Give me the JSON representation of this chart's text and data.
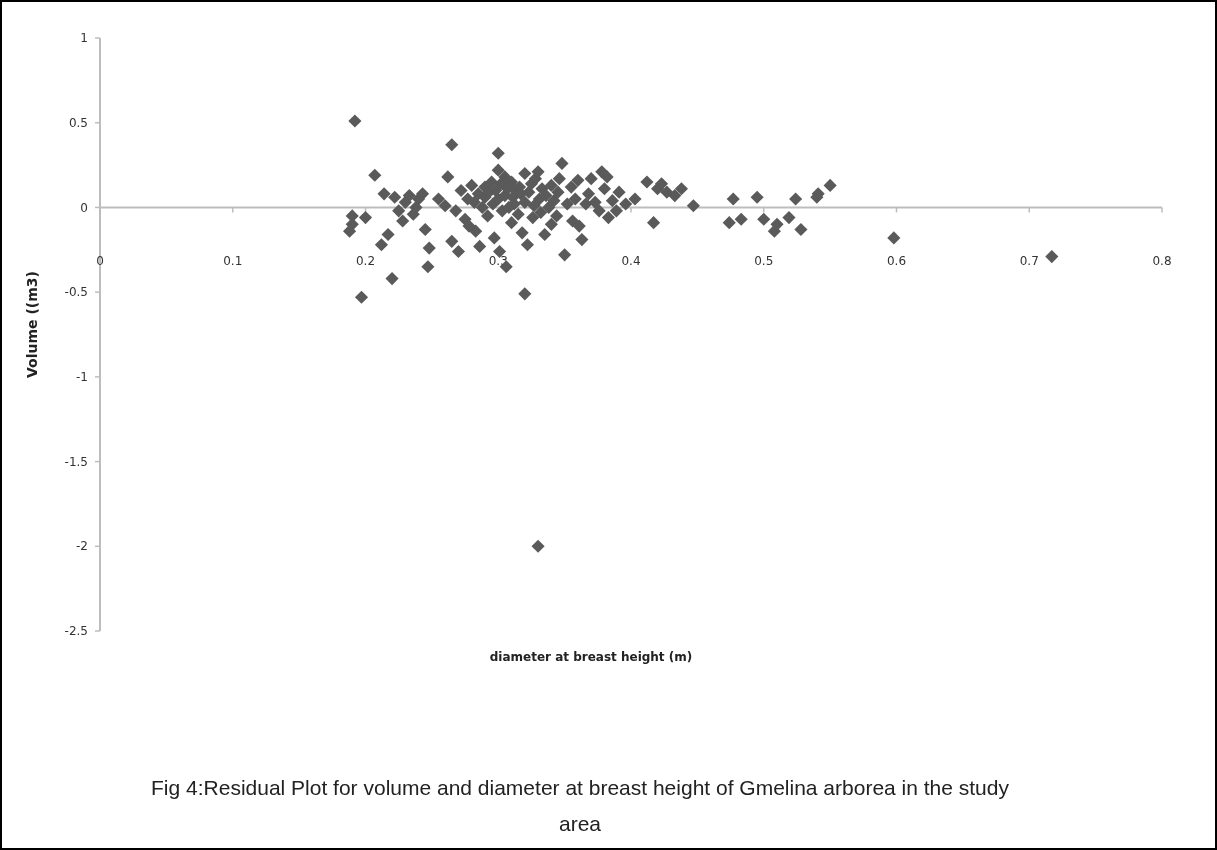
{
  "chart_data": {
    "type": "scatter",
    "xlabel": "diameter at breast height (m)",
    "ylabel": "Volume ((m3)",
    "annotations": [
      "Fig 4:Residual Plot for volume and diameter at breast height of Gmelina arborea in the study area"
    ],
    "xlim": [
      0,
      0.8
    ],
    "xticks": [
      0,
      0.1,
      0.2,
      0.3,
      0.4,
      0.5,
      0.6,
      0.7,
      0.8
    ],
    "ylim": [
      -2.5,
      1
    ],
    "yticks": [
      -2.5,
      -2,
      -1.5,
      -1,
      -0.5,
      0,
      0.5,
      1
    ],
    "marker": "diamond",
    "series": [
      {
        "color": "#5a5a5a",
        "x": [
          0.192,
          0.19,
          0.19,
          0.188,
          0.197,
          0.2,
          0.207,
          0.214,
          0.217,
          0.22,
          0.212,
          0.222,
          0.225,
          0.228,
          0.23,
          0.233,
          0.236,
          0.238,
          0.24,
          0.243,
          0.245,
          0.247,
          0.248,
          0.255,
          0.26,
          0.262,
          0.265,
          0.265,
          0.268,
          0.27,
          0.272,
          0.275,
          0.277,
          0.278,
          0.28,
          0.282,
          0.283,
          0.285,
          0.286,
          0.288,
          0.29,
          0.29,
          0.292,
          0.293,
          0.295,
          0.296,
          0.297,
          0.298,
          0.3,
          0.3,
          0.3,
          0.301,
          0.302,
          0.303,
          0.305,
          0.305,
          0.306,
          0.307,
          0.308,
          0.31,
          0.31,
          0.311,
          0.312,
          0.313,
          0.315,
          0.316,
          0.317,
          0.318,
          0.32,
          0.32,
          0.32,
          0.322,
          0.323,
          0.325,
          0.326,
          0.327,
          0.328,
          0.33,
          0.33,
          0.331,
          0.332,
          0.333,
          0.335,
          0.336,
          0.338,
          0.34,
          0.34,
          0.342,
          0.344,
          0.345,
          0.346,
          0.348,
          0.35,
          0.352,
          0.355,
          0.356,
          0.358,
          0.36,
          0.361,
          0.363,
          0.366,
          0.368,
          0.37,
          0.373,
          0.376,
          0.378,
          0.38,
          0.382,
          0.383,
          0.386,
          0.389,
          0.391,
          0.396,
          0.403,
          0.412,
          0.417,
          0.42,
          0.423,
          0.427,
          0.433,
          0.438,
          0.447,
          0.474,
          0.477,
          0.483,
          0.495,
          0.5,
          0.508,
          0.51,
          0.519,
          0.524,
          0.528,
          0.54,
          0.541,
          0.55,
          0.598,
          0.717
        ],
        "values": [
          0.51,
          -0.05,
          -0.1,
          -0.14,
          -0.53,
          -0.06,
          0.19,
          0.08,
          -0.16,
          -0.42,
          -0.22,
          0.06,
          -0.02,
          -0.08,
          0.03,
          0.07,
          -0.04,
          0.0,
          0.05,
          0.08,
          -0.13,
          -0.35,
          -0.24,
          0.05,
          0.01,
          0.18,
          0.37,
          -0.2,
          -0.02,
          -0.26,
          0.1,
          -0.07,
          0.05,
          -0.11,
          0.13,
          0.03,
          -0.14,
          0.08,
          -0.23,
          0.0,
          0.12,
          0.06,
          -0.05,
          0.09,
          0.15,
          0.02,
          -0.18,
          0.1,
          0.32,
          0.22,
          0.05,
          -0.26,
          0.14,
          -0.02,
          0.18,
          0.07,
          -0.35,
          0.11,
          0.0,
          0.15,
          -0.09,
          0.06,
          0.02,
          0.1,
          -0.04,
          0.12,
          0.08,
          -0.15,
          0.2,
          -0.51,
          0.03,
          -0.22,
          0.09,
          0.14,
          -0.06,
          0.01,
          0.17,
          0.21,
          -2.0,
          0.05,
          -0.03,
          0.11,
          -0.16,
          0.07,
          0.0,
          -0.1,
          0.13,
          0.04,
          -0.05,
          0.09,
          0.17,
          0.26,
          -0.28,
          0.02,
          0.12,
          -0.08,
          0.05,
          0.16,
          -0.11,
          -0.19,
          0.02,
          0.08,
          0.17,
          0.03,
          -0.02,
          0.21,
          0.11,
          0.18,
          -0.06,
          0.04,
          -0.02,
          0.09,
          0.02,
          0.05,
          0.15,
          -0.09,
          0.11,
          0.14,
          0.09,
          0.07,
          0.11,
          0.01,
          -0.09,
          0.05,
          -0.07,
          0.06,
          -0.07,
          -0.14,
          -0.1,
          -0.06,
          0.05,
          -0.13,
          0.06,
          0.08,
          0.13,
          -0.18,
          -0.29
        ]
      }
    ]
  }
}
